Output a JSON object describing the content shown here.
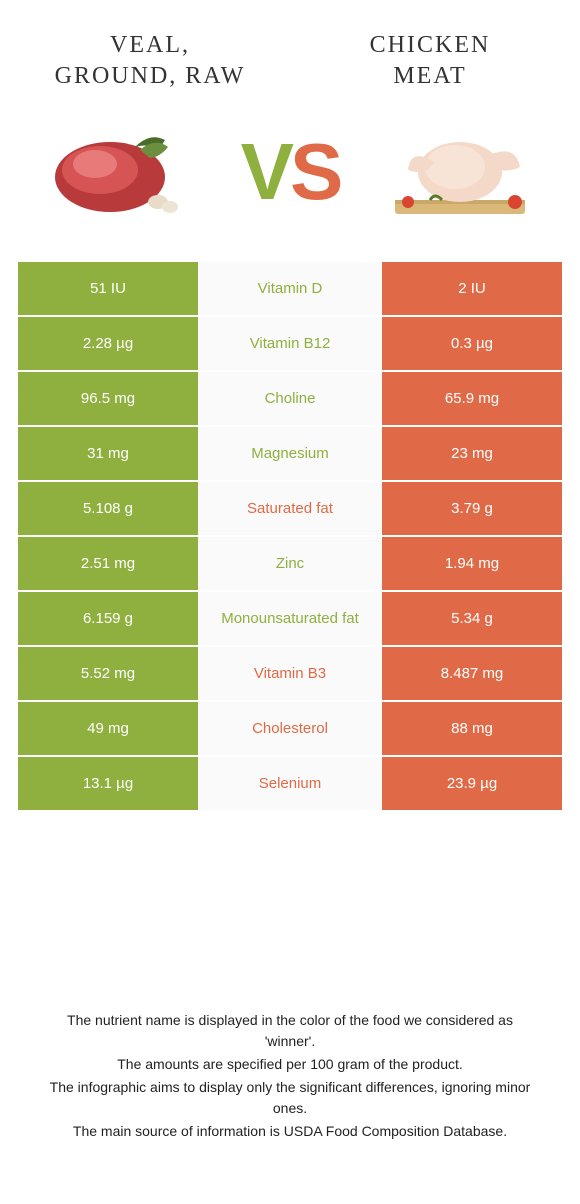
{
  "colors": {
    "green": "#8fb03e",
    "orange": "#e06a47",
    "mid_bg": "#fafafa",
    "text": "#333333"
  },
  "header": {
    "left_title": "VEAL, GROUND, RAW",
    "right_title": "CHICKEN MEAT"
  },
  "vs": {
    "v": "V",
    "s": "S"
  },
  "rows": [
    {
      "left": "51 IU",
      "mid": "Vitamin D",
      "right": "2 IU",
      "winner": "left"
    },
    {
      "left": "2.28 µg",
      "mid": "Vitamin B12",
      "right": "0.3 µg",
      "winner": "left"
    },
    {
      "left": "96.5 mg",
      "mid": "Choline",
      "right": "65.9 mg",
      "winner": "left"
    },
    {
      "left": "31 mg",
      "mid": "Magnesium",
      "right": "23 mg",
      "winner": "left"
    },
    {
      "left": "5.108 g",
      "mid": "Saturated fat",
      "right": "3.79 g",
      "winner": "right"
    },
    {
      "left": "2.51 mg",
      "mid": "Zinc",
      "right": "1.94 mg",
      "winner": "left"
    },
    {
      "left": "6.159 g",
      "mid": "Monounsaturated fat",
      "right": "5.34 g",
      "winner": "left"
    },
    {
      "left": "5.52 mg",
      "mid": "Vitamin B3",
      "right": "8.487 mg",
      "winner": "right"
    },
    {
      "left": "49 mg",
      "mid": "Cholesterol",
      "right": "88 mg",
      "winner": "right"
    },
    {
      "left": "13.1 µg",
      "mid": "Selenium",
      "right": "23.9 µg",
      "winner": "right"
    }
  ],
  "footnotes": [
    "The nutrient name is displayed in the color of the food we considered as 'winner'.",
    "The amounts are specified per 100 gram of the product.",
    "The infographic aims to display only the significant differences, ignoring minor ones.",
    "The main source of information is USDA Food Composition Database."
  ]
}
